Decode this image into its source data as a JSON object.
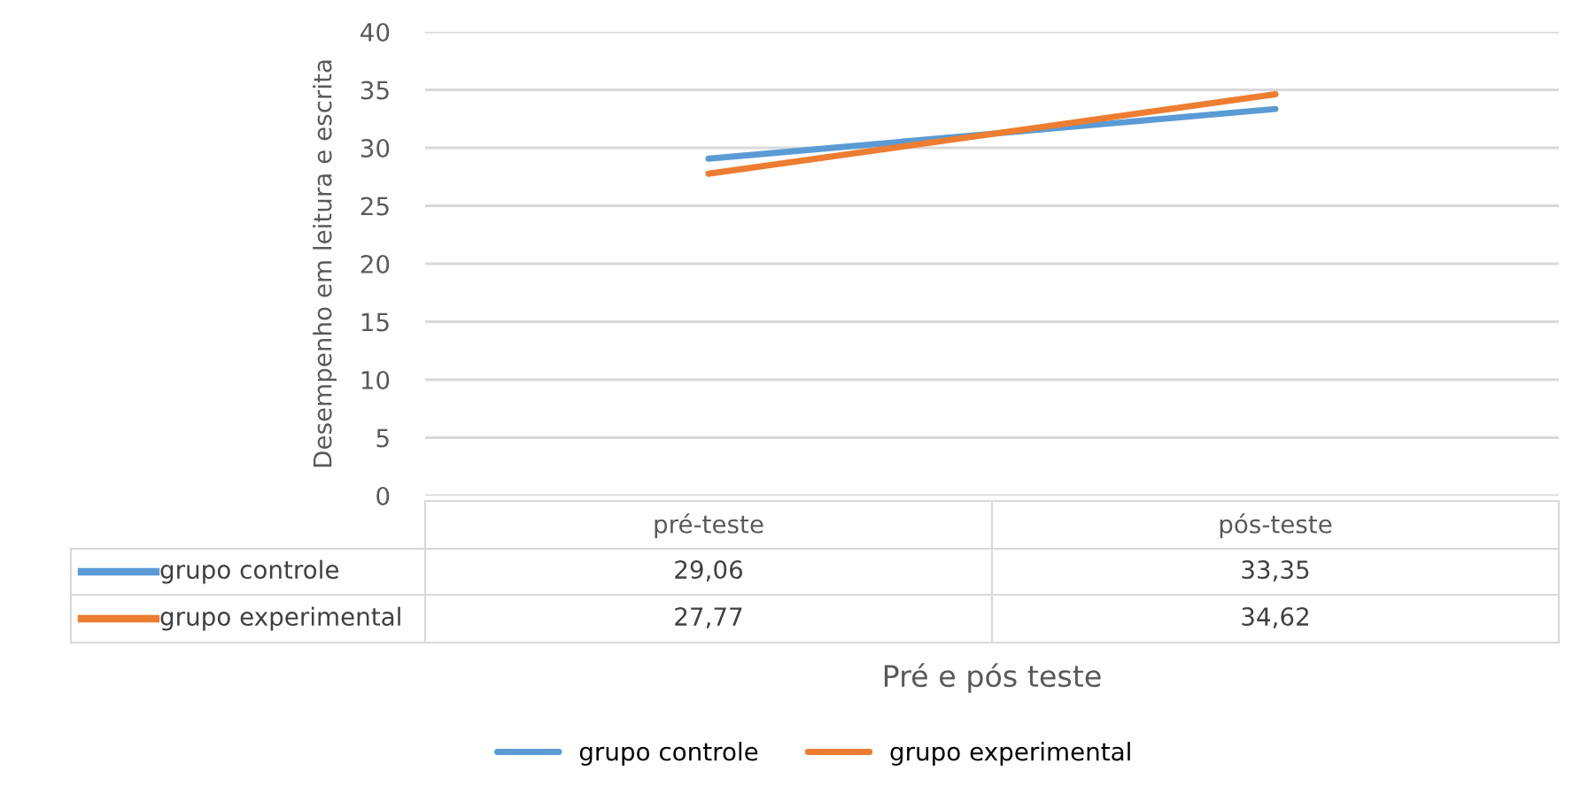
{
  "chart_data": {
    "type": "line",
    "categories": [
      "pré-teste",
      "pós-teste"
    ],
    "series": [
      {
        "name": "grupo controle",
        "color": "#5b9bd5",
        "values": [
          29.06,
          33.35
        ],
        "value_labels": [
          "29,06",
          "33,35"
        ]
      },
      {
        "name": "grupo experimental",
        "color": "#ed7d31",
        "values": [
          27.77,
          34.62
        ],
        "value_labels": [
          "27,77",
          "34,62"
        ]
      }
    ],
    "xlabel": "Pré e pós teste",
    "ylabel": "Desempenho em leitura e escrita",
    "ylim": [
      0,
      40
    ],
    "yticks": [
      0,
      5,
      10,
      15,
      20,
      25,
      30,
      35,
      40
    ],
    "grid": "y",
    "legend": "bottom",
    "marker": "none",
    "line_style": "solid"
  }
}
